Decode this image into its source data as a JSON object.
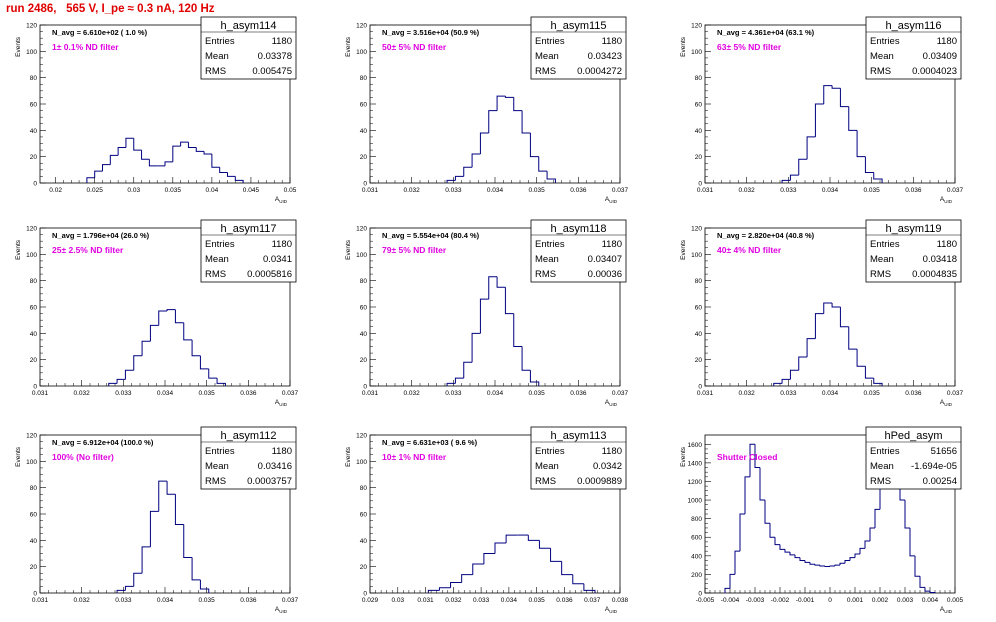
{
  "title": "run 2486,   565 V, I_pe ≈ 0.3 nA, 120 Hz",
  "colors": {
    "title": "#e00000",
    "histogram": "#000080",
    "filter_label": "#e000e0"
  },
  "panels": [
    {
      "name": "h_asym114",
      "navg": "N_avg = 6.610e+02 ( 1.0 %)",
      "filter": "1± 0.1% ND filter",
      "entries": "1180",
      "mean": "0.03378",
      "rms": "0.005475",
      "xlim": [
        0.018,
        0.05
      ],
      "xticks": [
        0.02,
        0.025,
        0.03,
        0.035,
        0.04,
        0.045,
        0.05
      ],
      "xticklabels": [
        "0.02",
        "0.025",
        "0.03",
        "0.035",
        "0.04",
        "0.045",
        "0.05"
      ]
    },
    {
      "name": "h_asym115",
      "navg": "N_avg = 3.516e+04 (50.9 %)",
      "filter": "50± 5% ND filter",
      "entries": "1180",
      "mean": "0.03423",
      "rms": "0.0004272",
      "xlim": [
        0.031,
        0.037
      ],
      "xticks": [
        0.031,
        0.032,
        0.033,
        0.034,
        0.035,
        0.036,
        0.037
      ],
      "xticklabels": [
        "0.031",
        "0.032",
        "0.033",
        "0.034",
        "0.035",
        "0.036",
        "0.037"
      ]
    },
    {
      "name": "h_asym116",
      "navg": "N_avg = 4.361e+04 (63.1 %)",
      "filter": "63± 5% ND filter",
      "entries": "1180",
      "mean": "0.03409",
      "rms": "0.0004023",
      "xlim": [
        0.031,
        0.037
      ],
      "xticks": [
        0.031,
        0.032,
        0.033,
        0.034,
        0.035,
        0.036,
        0.037
      ],
      "xticklabels": [
        "0.031",
        "0.032",
        "0.033",
        "0.034",
        "0.035",
        "0.036",
        "0.037"
      ]
    },
    {
      "name": "h_asym117",
      "navg": "N_avg = 1.796e+04 (26.0 %)",
      "filter": "25± 2.5% ND filter",
      "entries": "1180",
      "mean": "0.0341",
      "rms": "0.0005816",
      "xlim": [
        0.031,
        0.037
      ],
      "xticks": [
        0.031,
        0.032,
        0.033,
        0.034,
        0.035,
        0.036,
        0.037
      ],
      "xticklabels": [
        "0.031",
        "0.032",
        "0.033",
        "0.034",
        "0.035",
        "0.036",
        "0.037"
      ]
    },
    {
      "name": "h_asym118",
      "navg": "N_avg = 5.554e+04 (80.4 %)",
      "filter": "79± 5% ND filter",
      "entries": "1180",
      "mean": "0.03407",
      "rms": "0.00036",
      "xlim": [
        0.031,
        0.037
      ],
      "xticks": [
        0.031,
        0.032,
        0.033,
        0.034,
        0.035,
        0.036,
        0.037
      ],
      "xticklabels": [
        "0.031",
        "0.032",
        "0.033",
        "0.034",
        "0.035",
        "0.036",
        "0.037"
      ]
    },
    {
      "name": "h_asym119",
      "navg": "N_avg = 2.820e+04 (40.8 %)",
      "filter": "40± 4% ND filter",
      "entries": "1180",
      "mean": "0.03418",
      "rms": "0.0004835",
      "xlim": [
        0.031,
        0.037
      ],
      "xticks": [
        0.031,
        0.032,
        0.033,
        0.034,
        0.035,
        0.036,
        0.037
      ],
      "xticklabels": [
        "0.031",
        "0.032",
        "0.033",
        "0.034",
        "0.035",
        "0.036",
        "0.037"
      ]
    },
    {
      "name": "h_asym112",
      "navg": "N_avg = 6.912e+04 (100.0 %)",
      "filter": "100% (No filter)",
      "entries": "1180",
      "mean": "0.03416",
      "rms": "0.0003757",
      "xlim": [
        0.031,
        0.037
      ],
      "xticks": [
        0.031,
        0.032,
        0.033,
        0.034,
        0.035,
        0.036,
        0.037
      ],
      "xticklabels": [
        "0.031",
        "0.032",
        "0.033",
        "0.034",
        "0.035",
        "0.036",
        "0.037"
      ]
    },
    {
      "name": "h_asym113",
      "navg": "N_avg = 6.631e+03 ( 9.6 %)",
      "filter": "10± 1% ND filter",
      "entries": "1180",
      "mean": "0.0342",
      "rms": "0.0009889",
      "xlim": [
        0.029,
        0.038
      ],
      "xticks": [
        0.029,
        0.03,
        0.031,
        0.032,
        0.033,
        0.034,
        0.035,
        0.036,
        0.037,
        0.038
      ],
      "xticklabels": [
        "0.029",
        "0.03",
        "0.031",
        "0.032",
        "0.033",
        "0.034",
        "0.035",
        "0.036",
        "0.037",
        "0.038"
      ]
    },
    {
      "name": "hPed_asym",
      "navg": "",
      "filter": "Shutter Closed",
      "entries": "51656",
      "mean": "-1.694e-05",
      "rms": "0.00254",
      "xlim": [
        -0.005,
        0.005
      ],
      "xticks": [
        -0.005,
        -0.004,
        -0.003,
        -0.002,
        -0.001,
        0,
        0.001,
        0.002,
        0.003,
        0.004,
        0.005
      ],
      "xticklabels": [
        "-0.005",
        "-0.004",
        "-0.003",
        "-0.002",
        "-0.001",
        "0",
        "0.001",
        "0.002",
        "0.003",
        "0.004",
        "0.005"
      ]
    }
  ],
  "stat_labels": {
    "entries": "Entries",
    "mean": "Mean",
    "rms": "RMS"
  },
  "axis": {
    "ylabel": "Events",
    "xlabel": "A",
    "xlabel_sub": "UID"
  },
  "chart_data": [
    {
      "type": "bar",
      "title": "h_asym114",
      "xlim": [
        0.018,
        0.05
      ],
      "ylim": [
        0,
        120
      ],
      "yticks": [
        0,
        20,
        40,
        60,
        80,
        100,
        120
      ],
      "x": [
        0.0245,
        0.0255,
        0.0265,
        0.0275,
        0.0285,
        0.0295,
        0.0305,
        0.0315,
        0.0325,
        0.0335,
        0.0345,
        0.0355,
        0.0365,
        0.0375,
        0.0385,
        0.0395,
        0.0405,
        0.0415,
        0.0425,
        0.0435
      ],
      "values": [
        4,
        9,
        14,
        21,
        27,
        34,
        25,
        18,
        13,
        13,
        16,
        28,
        31,
        27,
        24,
        22,
        12,
        8,
        5,
        2
      ]
    },
    {
      "type": "bar",
      "title": "h_asym115",
      "xlim": [
        0.031,
        0.037
      ],
      "ylim": [
        0,
        120
      ],
      "yticks": [
        0,
        20,
        40,
        60,
        80,
        100,
        120
      ],
      "x": [
        0.03295,
        0.03315,
        0.03335,
        0.03355,
        0.03375,
        0.03395,
        0.03415,
        0.03435,
        0.03455,
        0.03475,
        0.03495,
        0.03515,
        0.03535
      ],
      "values": [
        2,
        5,
        12,
        22,
        38,
        55,
        66,
        65,
        55,
        38,
        20,
        9,
        3
      ]
    },
    {
      "type": "bar",
      "title": "h_asym116",
      "xlim": [
        0.031,
        0.037
      ],
      "ylim": [
        0,
        120
      ],
      "yticks": [
        0,
        20,
        40,
        60,
        80,
        100,
        120
      ],
      "x": [
        0.03295,
        0.03315,
        0.03335,
        0.03355,
        0.03375,
        0.03395,
        0.03415,
        0.03435,
        0.03455,
        0.03475,
        0.03495,
        0.03515
      ],
      "values": [
        2,
        6,
        18,
        35,
        60,
        74,
        72,
        58,
        40,
        20,
        8,
        3
      ]
    },
    {
      "type": "bar",
      "title": "h_asym117",
      "xlim": [
        0.031,
        0.037
      ],
      "ylim": [
        0,
        120
      ],
      "yticks": [
        0,
        20,
        40,
        60,
        80,
        100,
        120
      ],
      "x": [
        0.03275,
        0.03295,
        0.03315,
        0.03335,
        0.03355,
        0.03375,
        0.03395,
        0.03415,
        0.03435,
        0.03455,
        0.03475,
        0.03495,
        0.03515,
        0.03535
      ],
      "values": [
        2,
        5,
        12,
        23,
        34,
        46,
        57,
        58,
        48,
        35,
        23,
        13,
        6,
        2
      ]
    },
    {
      "type": "bar",
      "title": "h_asym118",
      "xlim": [
        0.031,
        0.037
      ],
      "ylim": [
        0,
        120
      ],
      "yticks": [
        0,
        20,
        40,
        60,
        80,
        100,
        120
      ],
      "x": [
        0.03295,
        0.03315,
        0.03335,
        0.03355,
        0.03375,
        0.03395,
        0.03415,
        0.03435,
        0.03455,
        0.03475,
        0.03495
      ],
      "values": [
        2,
        6,
        18,
        40,
        66,
        83,
        75,
        55,
        30,
        12,
        3
      ]
    },
    {
      "type": "bar",
      "title": "h_asym119",
      "xlim": [
        0.031,
        0.037
      ],
      "ylim": [
        0,
        120
      ],
      "yticks": [
        0,
        20,
        40,
        60,
        80,
        100,
        120
      ],
      "x": [
        0.03275,
        0.03295,
        0.03315,
        0.03335,
        0.03355,
        0.03375,
        0.03395,
        0.03415,
        0.03435,
        0.03455,
        0.03475,
        0.03495,
        0.03515
      ],
      "values": [
        2,
        5,
        12,
        22,
        36,
        55,
        63,
        60,
        45,
        28,
        15,
        6,
        2
      ]
    },
    {
      "type": "bar",
      "title": "h_asym112",
      "xlim": [
        0.031,
        0.037
      ],
      "ylim": [
        0,
        120
      ],
      "yticks": [
        0,
        20,
        40,
        60,
        80,
        100,
        120
      ],
      "x": [
        0.03295,
        0.03315,
        0.03335,
        0.03355,
        0.03375,
        0.03395,
        0.03415,
        0.03435,
        0.03455,
        0.03475,
        0.03495
      ],
      "values": [
        2,
        5,
        15,
        35,
        62,
        85,
        75,
        52,
        27,
        10,
        3
      ]
    },
    {
      "type": "bar",
      "title": "h_asym113",
      "xlim": [
        0.029,
        0.038
      ],
      "ylim": [
        0,
        120
      ],
      "yticks": [
        0,
        20,
        40,
        60,
        80,
        100,
        120
      ],
      "x": [
        0.0313,
        0.0317,
        0.0321,
        0.0325,
        0.0329,
        0.0333,
        0.0337,
        0.0341,
        0.0345,
        0.0349,
        0.0353,
        0.0357,
        0.0361,
        0.0365,
        0.0369
      ],
      "values": [
        2,
        4,
        8,
        14,
        22,
        30,
        38,
        44,
        44,
        40,
        34,
        24,
        14,
        7,
        2
      ]
    },
    {
      "type": "bar",
      "title": "hPed_asym",
      "xlim": [
        -0.005,
        0.005
      ],
      "ylim": [
        0,
        1700
      ],
      "yticks": [
        0,
        200,
        400,
        600,
        800,
        1000,
        1200,
        1400,
        1600
      ],
      "x": [
        -0.0041,
        -0.0039,
        -0.0037,
        -0.0035,
        -0.0033,
        -0.0031,
        -0.0029,
        -0.0027,
        -0.0025,
        -0.0023,
        -0.0021,
        -0.0019,
        -0.0017,
        -0.0015,
        -0.0013,
        -0.0011,
        -0.0009,
        -0.0007,
        -0.0005,
        -0.0003,
        -0.0001,
        0.0001,
        0.0003,
        0.0005,
        0.0007,
        0.0009,
        0.0011,
        0.0013,
        0.0015,
        0.0017,
        0.0019,
        0.0021,
        0.0023,
        0.0025,
        0.0027,
        0.0029,
        0.0031,
        0.0033,
        0.0035,
        0.0037,
        0.0039,
        0.0041
      ],
      "values": [
        50,
        200,
        450,
        850,
        1250,
        1600,
        1350,
        1000,
        750,
        600,
        520,
        470,
        440,
        410,
        380,
        350,
        330,
        310,
        300,
        290,
        285,
        290,
        300,
        320,
        350,
        380,
        420,
        480,
        560,
        700,
        900,
        1150,
        1350,
        1450,
        1300,
        1000,
        700,
        400,
        180,
        60,
        20,
        5
      ]
    }
  ]
}
